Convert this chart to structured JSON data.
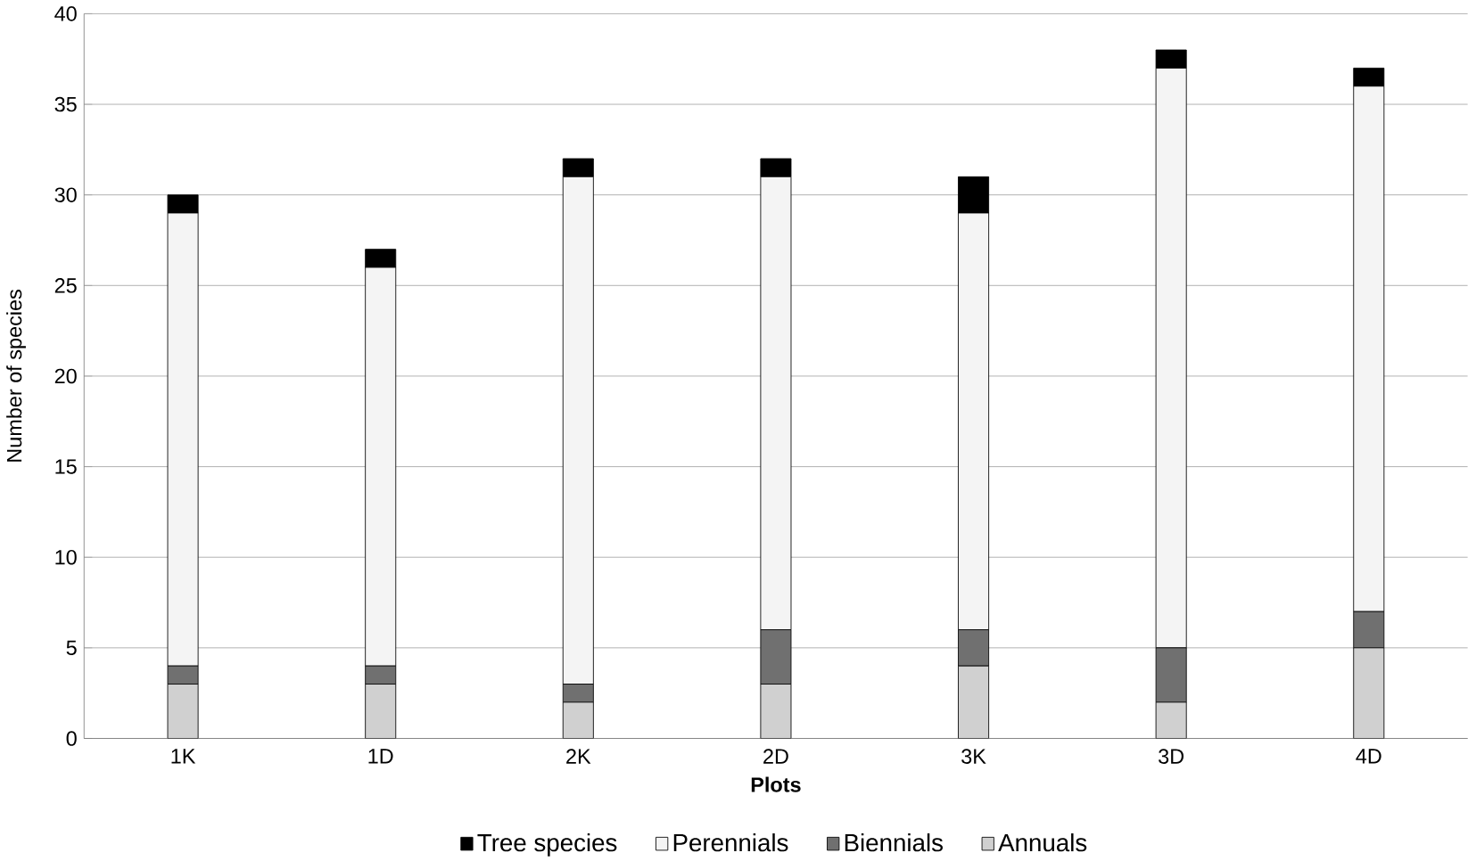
{
  "chart_data": {
    "type": "bar",
    "stacked": true,
    "xlabel": "Plots",
    "ylabel": "Number of species",
    "categories": [
      "1K",
      "1D",
      "2K",
      "2D",
      "3K",
      "3D",
      "4D"
    ],
    "series": [
      {
        "name": "Annuals",
        "color": "#d0d0d0",
        "values": [
          3,
          3,
          2,
          3,
          4,
          2,
          5
        ]
      },
      {
        "name": "Biennials",
        "color": "#707070",
        "values": [
          1,
          1,
          1,
          3,
          2,
          3,
          2
        ]
      },
      {
        "name": "Perennials",
        "color": "#f4f4f4",
        "values": [
          25,
          22,
          28,
          25,
          23,
          32,
          29
        ]
      },
      {
        "name": "Tree species",
        "color": "#000000",
        "values": [
          1,
          1,
          1,
          1,
          2,
          1,
          1
        ]
      }
    ],
    "ylim": [
      0,
      40
    ],
    "yticks": [
      0,
      5,
      10,
      15,
      20,
      25,
      30,
      35,
      40
    ],
    "grid": "y",
    "legend": "bottom"
  }
}
